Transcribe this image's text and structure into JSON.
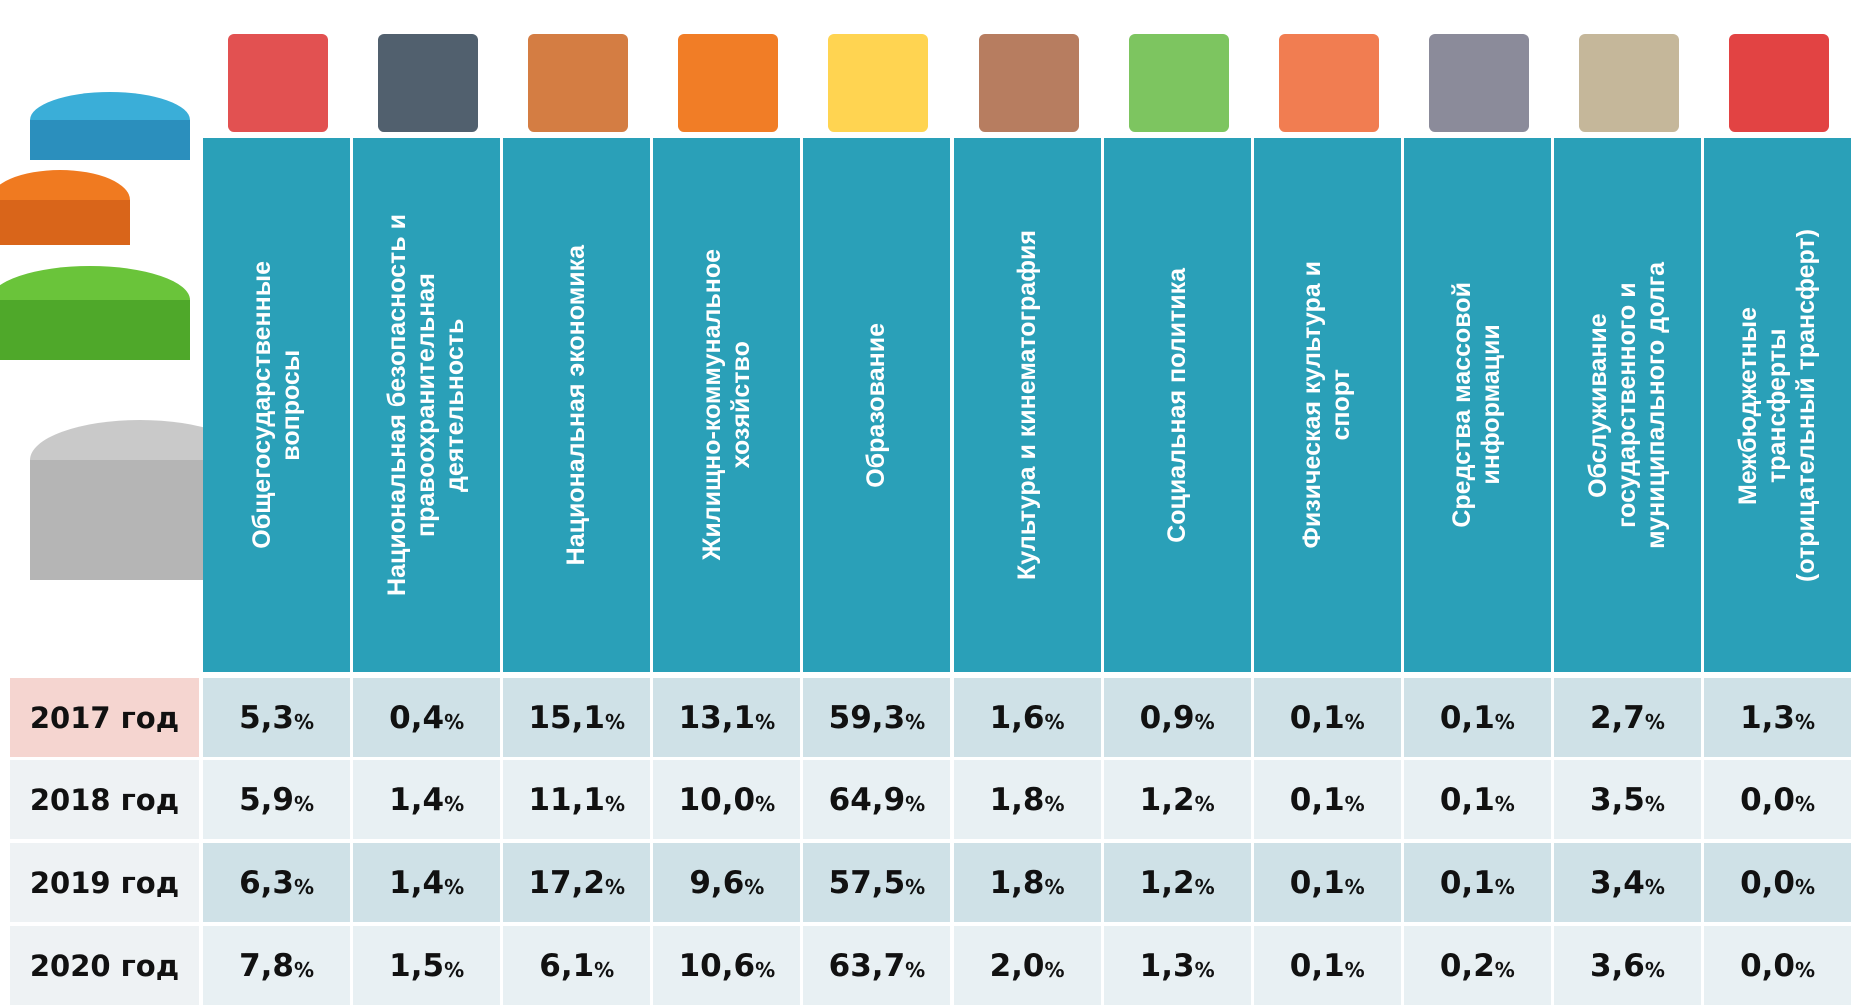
{
  "table": {
    "columns": [
      "Общегосударственные\nвопросы",
      "Национальная безопасность и\nправоохранительная\nдеятельность",
      "Национальная экономика",
      "Жилищно-коммунальное\nхозяйство",
      "Образование",
      "Культура и кинематография",
      "Социальная политика",
      "Физическая культура и\nспорт",
      "Средства массовой\nинформации",
      "Обслуживание\nгосударственного и\nмуниципального долга",
      "Межбюджетные\nтрансферты\n(отрицательный трансферт)"
    ],
    "unit": "%",
    "rows": [
      {
        "label": "2017 год",
        "cells": [
          "5,3",
          "0,4",
          "15,1",
          "13,1",
          "59,3",
          "1,6",
          "0,9",
          "0,1",
          "0,1",
          "2,7",
          "1,3"
        ]
      },
      {
        "label": "2018 год",
        "cells": [
          "5,9",
          "1,4",
          "11,1",
          "10,0",
          "64,9",
          "1,8",
          "1,2",
          "0,1",
          "0,1",
          "3,5",
          "0,0"
        ]
      },
      {
        "label": "2019 год",
        "cells": [
          "6,3",
          "1,4",
          "17,2",
          "9,6",
          "57,5",
          "1,8",
          "1,2",
          "0,1",
          "0,1",
          "3,4",
          "0,0"
        ]
      },
      {
        "label": "2020 год",
        "cells": [
          "7,8",
          "1,5",
          "6,1",
          "10,6",
          "63,7",
          "2,0",
          "1,3",
          "0,1",
          "0,2",
          "3,6",
          "0,0"
        ]
      }
    ]
  }
}
